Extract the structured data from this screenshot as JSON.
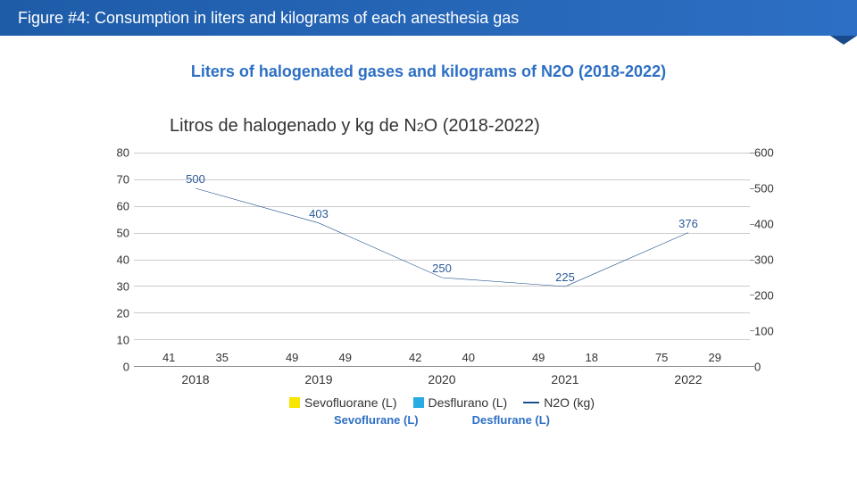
{
  "header": {
    "title": "Figure #4: Consumption in liters and kilograms of each anesthesia gas"
  },
  "subtitle": "Liters of halogenated gases and kilograms of N2O (2018-2022)",
  "chart": {
    "type": "bar+line",
    "title_main": "Litros de halogenado y kg de N",
    "title_sub1": "2",
    "title_sub2": "O (2018-2022)",
    "categories": [
      "2018",
      "2019",
      "2020",
      "2021",
      "2022"
    ],
    "y_left": {
      "min": 0,
      "max": 80,
      "step": 10
    },
    "y_right": {
      "min": 0,
      "max": 600,
      "step": 100
    },
    "series_bars": [
      {
        "name": "Sevofluorane (L)",
        "name_en": "Sevoflurane (L)",
        "color": "#f7e600",
        "values": [
          41,
          49,
          42,
          49,
          75
        ]
      },
      {
        "name": "Desflurano (L)",
        "name_en": "Desflurane (L)",
        "color": "#29abe2",
        "values": [
          35,
          49,
          40,
          18,
          29
        ]
      }
    ],
    "series_line": {
      "name": "N2O (kg)",
      "color": "#1f4e8c",
      "values": [
        500,
        403,
        250,
        225,
        376
      ]
    },
    "grid_color": "#cccccc",
    "axis_color": "#888888",
    "background_color": "#ffffff",
    "label_fontsize": 13
  },
  "colors": {
    "header_bg": "#2d6fc4",
    "subtitle": "#2d6fc4"
  }
}
